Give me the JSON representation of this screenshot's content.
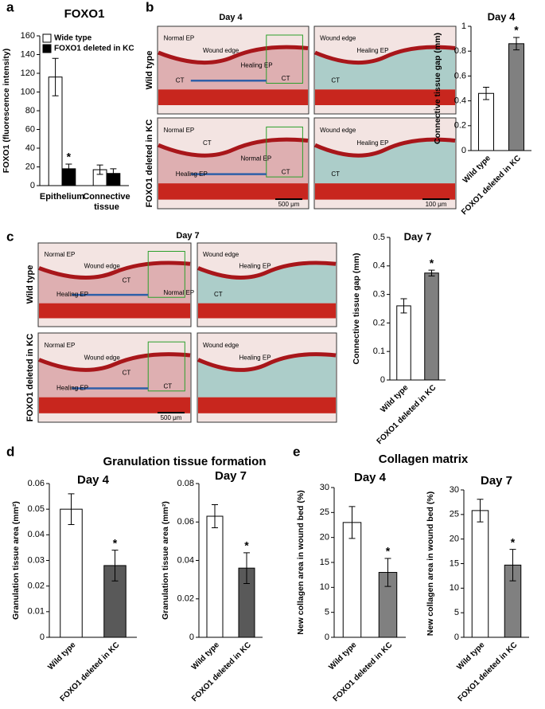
{
  "panel_labels": [
    "a",
    "b",
    "c",
    "d",
    "e"
  ],
  "group_titles": {
    "d": "Granulation tissue formation",
    "e": "Collagen matrix"
  },
  "micrographs": [
    {
      "title": "Day 4",
      "rows": [
        "Wild type",
        "FOXO1  deleted in KC"
      ],
      "images": [
        {
          "labels": [
            "Normal EP",
            "Wound edge",
            "CT",
            "Healing EP",
            "CT"
          ]
        },
        {
          "labels": [
            "Wound edge",
            "Healing EP",
            "CT"
          ]
        },
        {
          "labels": [
            "Normal EP",
            "CT",
            "Healing EP",
            "Normal EP",
            "CT"
          ],
          "scale": "500 μm"
        },
        {
          "labels": [
            "Wound edge",
            "Healing EP",
            "CT"
          ],
          "scale": "100 μm"
        }
      ]
    },
    {
      "title": "Day 7",
      "rows": [
        "Wild type",
        "FOXO1  deleted in KC"
      ],
      "images": [
        {
          "labels": [
            "Normal EP",
            "Wound edge",
            "Healing EP",
            "CT",
            "Normal EP"
          ]
        },
        {
          "labels": [
            "Wound edge",
            "Healing EP",
            "CT"
          ]
        },
        {
          "labels": [
            "Normal EP",
            "Wound edge",
            "Healing EP",
            "CT",
            "CT"
          ],
          "scale": "500 μm"
        },
        {
          "labels": [
            "Wound edge",
            "Healing EP"
          ]
        }
      ]
    }
  ],
  "chart_data": [
    {
      "type": "grouped-bar",
      "title": "FOXO1",
      "ylabel": "FOXO1 (fluorescence intensity)",
      "categories": [
        "Epithelium",
        "Connective tissue"
      ],
      "series": [
        {
          "name": "Wide type",
          "color": "#ffffff",
          "values": [
            116,
            17
          ],
          "errors": [
            20,
            5
          ],
          "significance": [
            null,
            null
          ]
        },
        {
          "name": "FOXO1 deleted in KC",
          "color": "#000000",
          "values": [
            18,
            13
          ],
          "errors": [
            5,
            5
          ],
          "significance": [
            "*",
            null
          ]
        }
      ],
      "ylim": [
        0,
        160
      ],
      "yticks": [
        0,
        20,
        40,
        60,
        80,
        100,
        120,
        140,
        160
      ],
      "legend": "top-left"
    },
    {
      "type": "bar",
      "title": "Day 4",
      "ylabel": "Connective tissue gap (mm)",
      "categories": [
        "Wild type",
        "FOXO1  deleted in KC"
      ],
      "values": [
        0.46,
        0.86
      ],
      "errors": [
        0.05,
        0.05
      ],
      "colors": [
        "#ffffff",
        "#808080"
      ],
      "significance": [
        null,
        "*"
      ],
      "ylim": [
        0,
        1
      ],
      "yticks": [
        0,
        0.2,
        0.4,
        0.6,
        0.8,
        1
      ]
    },
    {
      "type": "bar",
      "title": "Day 7",
      "ylabel": "Connective tissue gap (mm)",
      "categories": [
        "Wild type",
        "FOXO1  deleted in KC"
      ],
      "values": [
        0.26,
        0.375
      ],
      "errors": [
        0.025,
        0.01
      ],
      "colors": [
        "#ffffff",
        "#808080"
      ],
      "significance": [
        null,
        "*"
      ],
      "ylim": [
        0,
        0.5
      ],
      "yticks": [
        0,
        0.1,
        0.2,
        0.3,
        0.4,
        0.5
      ]
    },
    {
      "type": "bar",
      "title": "Day 4",
      "ylabel": "Granulation tissue area (mm²)",
      "categories": [
        "Wild type",
        "FOXO1  deleted in KC"
      ],
      "values": [
        0.05,
        0.028
      ],
      "errors": [
        0.006,
        0.006
      ],
      "colors": [
        "#ffffff",
        "#595959"
      ],
      "significance": [
        null,
        "*"
      ],
      "ylim": [
        0,
        0.06
      ],
      "yticks": [
        0,
        0.01,
        0.02,
        0.03,
        0.04,
        0.05,
        0.06
      ]
    },
    {
      "type": "bar",
      "title": "Day 7",
      "ylabel": "Granulation tissue  area (mm²)",
      "categories": [
        "Wild type",
        "FOXO1  deleted in KC"
      ],
      "values": [
        0.063,
        0.036
      ],
      "errors": [
        0.006,
        0.008
      ],
      "colors": [
        "#ffffff",
        "#595959"
      ],
      "significance": [
        null,
        "*"
      ],
      "ylim": [
        0,
        0.08
      ],
      "yticks": [
        0,
        0.02,
        0.04,
        0.06,
        0.08
      ]
    },
    {
      "type": "bar",
      "title": "Day 4",
      "ylabel": "New collagen area in wound bed (%)",
      "categories": [
        "Wild type",
        "FOXO1  deleted in KC"
      ],
      "values": [
        23,
        13
      ],
      "errors": [
        3.2,
        2.8
      ],
      "colors": [
        "#ffffff",
        "#808080"
      ],
      "significance": [
        null,
        "*"
      ],
      "ylim": [
        0,
        30
      ],
      "yticks": [
        0,
        5,
        10,
        15,
        20,
        25,
        30
      ]
    },
    {
      "type": "bar",
      "title": "Day 7",
      "ylabel": "New collagen area in wound bed (%)",
      "categories": [
        "Wild type",
        "FOXO1  deleted in KC"
      ],
      "values": [
        25.8,
        14.7
      ],
      "errors": [
        2.3,
        3.2
      ],
      "colors": [
        "#ffffff",
        "#808080"
      ],
      "significance": [
        null,
        "*"
      ],
      "ylim": [
        0,
        30
      ],
      "yticks": [
        0,
        5,
        10,
        15,
        20,
        25,
        30
      ]
    }
  ]
}
